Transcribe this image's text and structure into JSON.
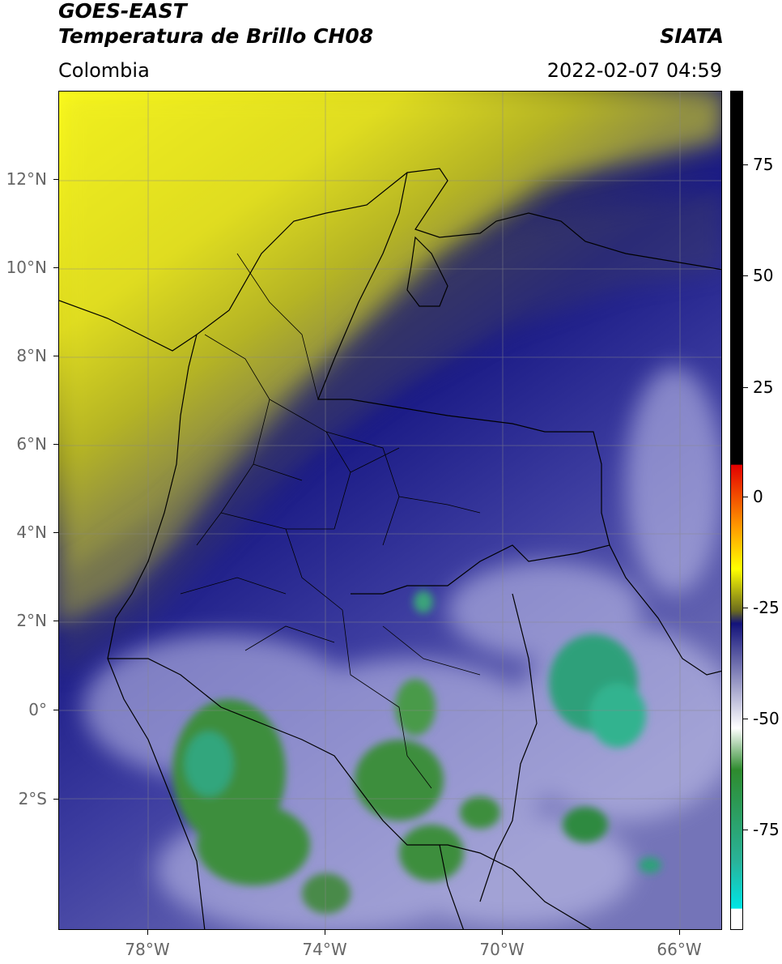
{
  "header": {
    "satellite": "GOES-EAST",
    "product": "Temperatura de Brillo CH08",
    "region": "Colombia",
    "agency": "SIATA",
    "datetime": "2022-02-07 04:59"
  },
  "map": {
    "lat_labels": [
      "12°N",
      "10°N",
      "8°N",
      "6°N",
      "4°N",
      "2°N",
      "0°",
      "2°S"
    ],
    "lon_labels": [
      "78°W",
      "74°W",
      "70°W",
      "66°W"
    ],
    "extent": {
      "lon": [
        -80,
        -65
      ],
      "lat": [
        -5,
        14
      ]
    }
  },
  "colorbar": {
    "labels": [
      "75",
      "50",
      "25",
      "0",
      "-25",
      "-50",
      "-75"
    ],
    "range": [
      -95,
      90
    ],
    "colors": {
      "black": "#000000",
      "red": "#e30000",
      "orange": "#ff9a00",
      "yellow": "#ffff00",
      "olive": "#6b6b1e",
      "navy": "#13137a",
      "white": "#ffffff",
      "green": "#2e8b2e",
      "teal": "#29b39a",
      "cyan": "#00e5e5"
    }
  }
}
